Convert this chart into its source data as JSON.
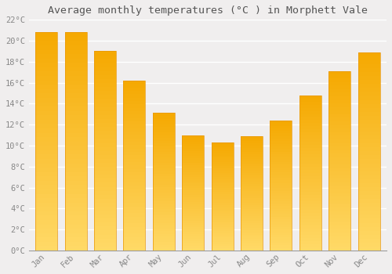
{
  "title": "Average monthly temperatures (°C ) in Morphett Vale",
  "months": [
    "Jan",
    "Feb",
    "Mar",
    "Apr",
    "May",
    "Jun",
    "Jul",
    "Aug",
    "Sep",
    "Oct",
    "Nov",
    "Dec"
  ],
  "values": [
    20.8,
    20.8,
    19.0,
    16.2,
    13.1,
    11.0,
    10.3,
    10.9,
    12.4,
    14.8,
    17.1,
    18.9
  ],
  "bar_color_dark": "#F5A800",
  "bar_color_light": "#FFD966",
  "ylim": [
    0,
    22
  ],
  "yticks": [
    0,
    2,
    4,
    6,
    8,
    10,
    12,
    14,
    16,
    18,
    20,
    22
  ],
  "ytick_labels": [
    "0°C",
    "2°C",
    "4°C",
    "6°C",
    "8°C",
    "10°C",
    "12°C",
    "14°C",
    "16°C",
    "18°C",
    "20°C",
    "22°C"
  ],
  "background_color": "#f0eeee",
  "grid_color": "#ffffff",
  "title_fontsize": 9.5,
  "tick_fontsize": 7.5,
  "bar_edge_color": "#E8970A"
}
